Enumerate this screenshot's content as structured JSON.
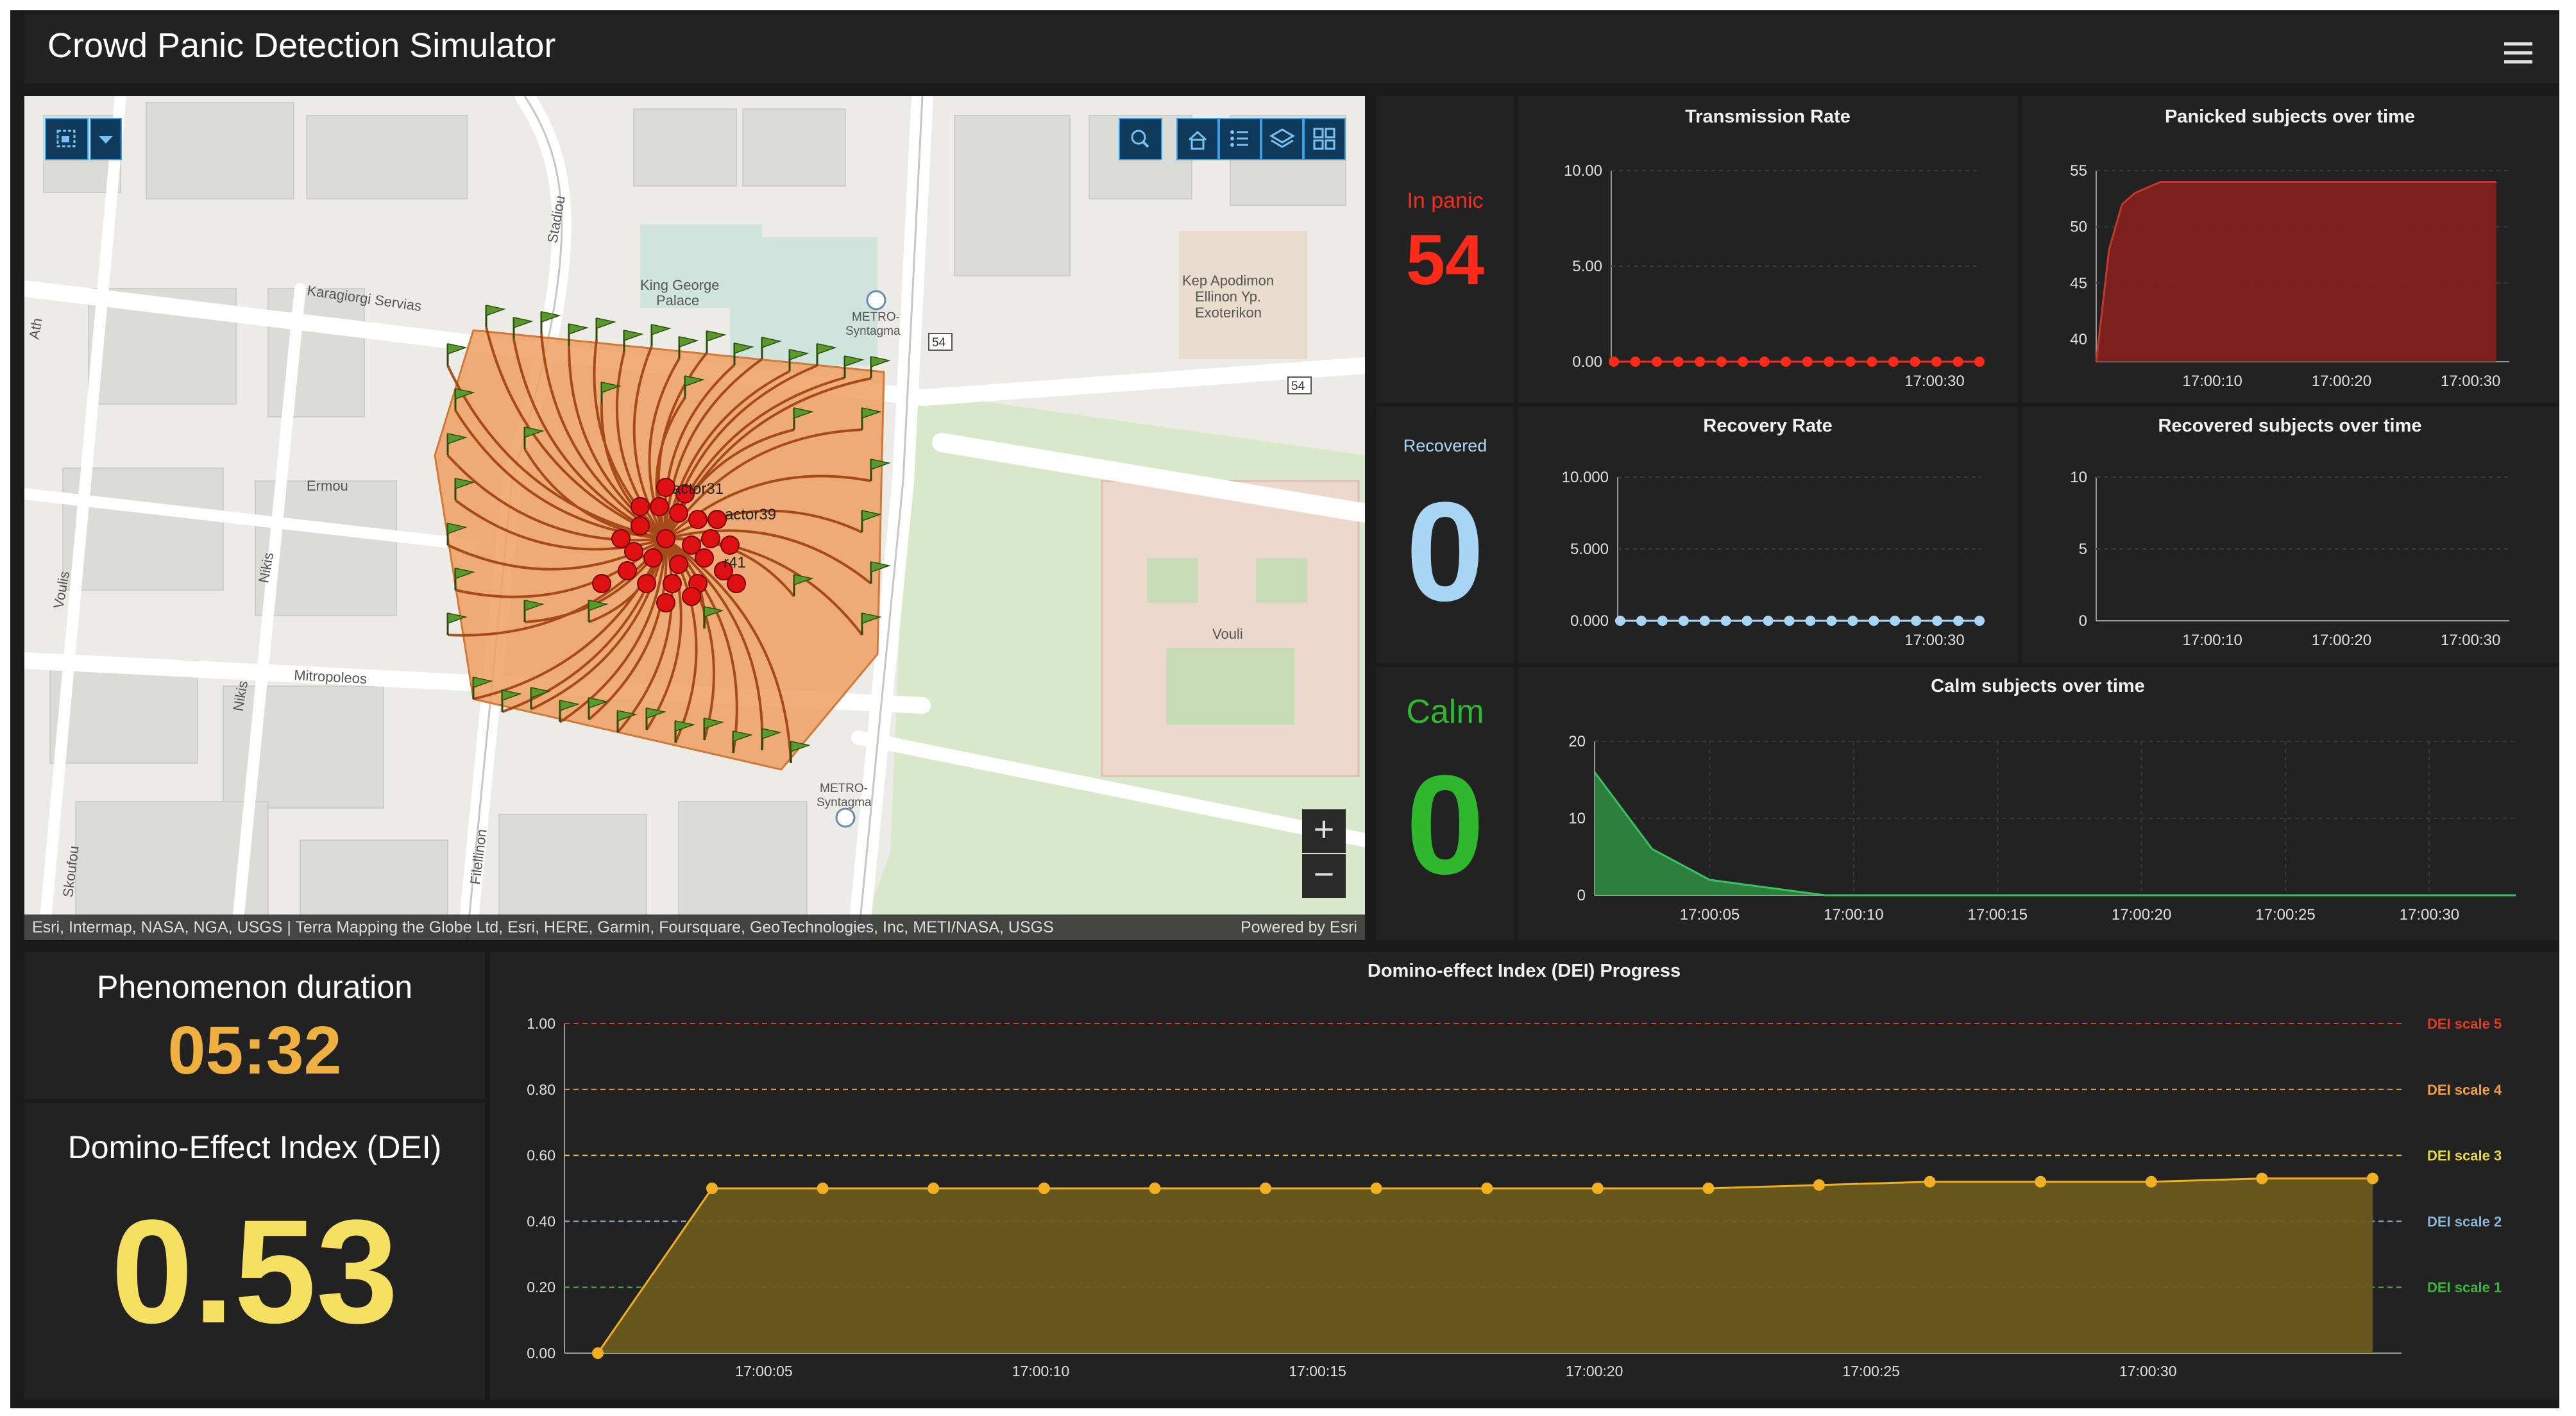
{
  "app": {
    "title": "Crowd Panic Detection Simulator"
  },
  "map": {
    "labels": {
      "stadiou": "Stadiou",
      "karagiorgi": "Karagiorgi Servias",
      "king_george_1": "King George",
      "king_george_2": "Palace",
      "metro1_1": "METRO-",
      "metro1_2": "Syntagma",
      "kep_1": "Kep Apodimon",
      "kep_2": "Ellinon Yp.",
      "kep_3": "Exoterikon",
      "road54a": "54",
      "road54b": "54",
      "ermou": "Ermou",
      "voulis": "Voulis",
      "nikis": "Nikis",
      "nikis2": "Nikis",
      "mitropoleos": "Mitropoleos",
      "filellinon": "Filellinon",
      "metro2_1": "METRO-",
      "metro2_2": "Syntagma",
      "vouli": "Vouli",
      "skoufou": "Skoufou",
      "ath": "Ath",
      "actor31": "actor31",
      "actor39": "actor39",
      "actor41": "r41"
    },
    "attribution": "Esri, Intermap, NASA, NGA, USGS | Terra Mapping the Globe Ltd, Esri, HERE, Garmin, Foursquare, GeoTechnologies, Inc, METI/NASA, USGS",
    "powered_by": "Powered by Esri",
    "zoom_in": "+",
    "zoom_out": "−",
    "colors": {
      "area": "#f0a060",
      "flag": "#5a9a2a",
      "agent": "#dd1111",
      "path": "#a04010"
    }
  },
  "indicators": {
    "panic": {
      "label": "In panic",
      "value": "54",
      "color": "#ff2a1a"
    },
    "recovered": {
      "label": "Recovered",
      "value": "0",
      "color": "#a9d5f5"
    },
    "calm": {
      "label": "Calm",
      "value": "0",
      "color": "#2db82d"
    }
  },
  "phenomenon": {
    "label": "Phenomenon duration",
    "value": "05:32",
    "color": "#f0b040"
  },
  "dei": {
    "label": "Domino-Effect Index (DEI)",
    "value": "0.53",
    "color": "#f5e060"
  },
  "chart_data": [
    {
      "id": "transmission",
      "type": "line",
      "title": "Transmission Rate",
      "ylim": [
        0,
        10
      ],
      "y_ticks": [
        "0.00",
        "5.00",
        "10.00"
      ],
      "x_ticks": [
        "17:00:30"
      ],
      "values": [
        0,
        0,
        0,
        0,
        0,
        0,
        0,
        0,
        0,
        0,
        0,
        0,
        0,
        0,
        0,
        0,
        0,
        0
      ],
      "color": "#ff2a1a"
    },
    {
      "id": "panicked",
      "type": "area",
      "title": "Panicked subjects over time",
      "ylim": [
        38,
        55
      ],
      "y_ticks": [
        "40",
        "45",
        "50",
        "55"
      ],
      "x_ticks": [
        "17:00:10",
        "17:00:20",
        "17:00:30"
      ],
      "x": [
        "17:00:01",
        "17:00:02",
        "17:00:03",
        "17:00:04",
        "17:00:06",
        "17:00:08",
        "17:00:12",
        "17:00:16",
        "17:00:20",
        "17:00:24",
        "17:00:28",
        "17:00:32"
      ],
      "values": [
        38,
        48,
        52,
        53,
        54,
        54,
        54,
        54,
        54,
        54,
        54,
        54
      ],
      "color": "#8b1f1f"
    },
    {
      "id": "recovery",
      "type": "line",
      "title": "Recovery Rate",
      "ylim": [
        0,
        10
      ],
      "y_ticks": [
        "0.000",
        "5.000",
        "10.000"
      ],
      "x_ticks": [
        "17:00:30"
      ],
      "values": [
        0,
        0,
        0,
        0,
        0,
        0,
        0,
        0,
        0,
        0,
        0,
        0,
        0,
        0,
        0,
        0,
        0,
        0
      ],
      "color": "#a9d5f5"
    },
    {
      "id": "recovered",
      "type": "area",
      "title": "Recovered subjects over time",
      "ylim": [
        0,
        10
      ],
      "y_ticks": [
        "0",
        "5",
        "10"
      ],
      "x_ticks": [
        "17:00:10",
        "17:00:20",
        "17:00:30"
      ],
      "values": [],
      "color": "#a9d5f5"
    },
    {
      "id": "calm",
      "type": "area",
      "title": "Calm subjects over time",
      "ylim": [
        0,
        20
      ],
      "y_ticks": [
        "0",
        "10",
        "20"
      ],
      "x_ticks": [
        "17:00:05",
        "17:00:10",
        "17:00:15",
        "17:00:20",
        "17:00:25",
        "17:00:30"
      ],
      "x": [
        "17:00:01",
        "17:00:03",
        "17:00:05",
        "17:00:07",
        "17:00:09",
        "17:00:11",
        "17:00:33"
      ],
      "values": [
        16,
        6,
        2,
        1,
        0,
        0,
        0
      ],
      "color": "#2d8a40"
    },
    {
      "id": "dei",
      "type": "area",
      "title": "Domino-effect Index (DEI) Progress",
      "ylim": [
        0,
        1
      ],
      "y_ticks": [
        "0.00",
        "0.20",
        "0.40",
        "0.60",
        "0.80",
        "1.00"
      ],
      "x_ticks": [
        "17:00:05",
        "17:00:10",
        "17:00:15",
        "17:00:20",
        "17:00:25",
        "17:00:30"
      ],
      "values": [
        0,
        0.5,
        0.5,
        0.5,
        0.5,
        0.5,
        0.5,
        0.5,
        0.5,
        0.5,
        0.5,
        0.51,
        0.52,
        0.52,
        0.52,
        0.53,
        0.53
      ],
      "color": "#6b5a1e",
      "line_color": "#f0b020",
      "thresholds": [
        {
          "name": "DEI scale 1",
          "value": 0.2,
          "color": "#3ab53a"
        },
        {
          "name": "DEI scale 2",
          "value": 0.4,
          "color": "#8ab4d8"
        },
        {
          "name": "DEI scale 3",
          "value": 0.6,
          "color": "#e8d840"
        },
        {
          "name": "DEI scale 4",
          "value": 0.8,
          "color": "#f0a040"
        },
        {
          "name": "DEI scale 5",
          "value": 1.0,
          "color": "#e03a2a"
        }
      ]
    }
  ]
}
